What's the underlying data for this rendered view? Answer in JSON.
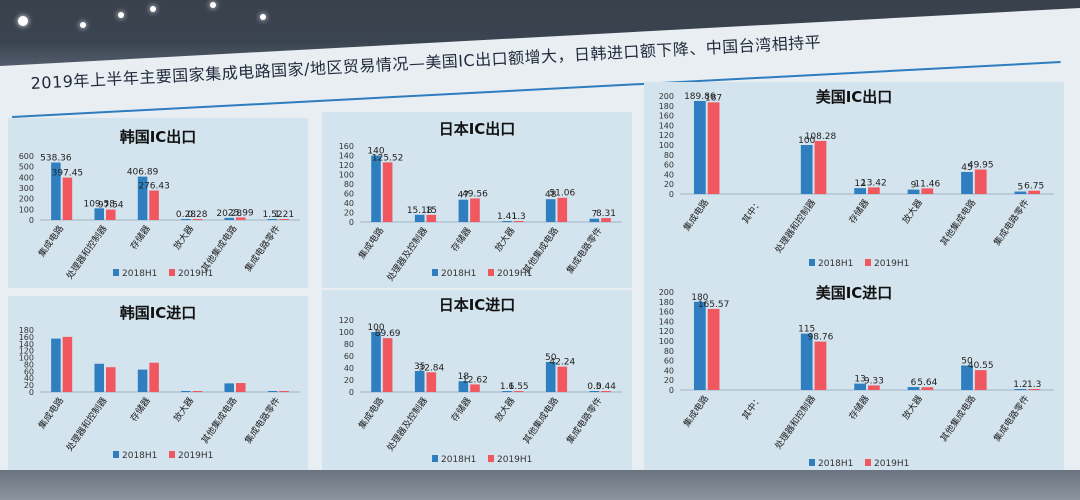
{
  "slide": {
    "title": "2019年上半年主要国家集成电路国家/地区贸易情况—美国IC出口额增大，日韩进口额下降、中国台湾相持平"
  },
  "colors": {
    "s2018": "#2f7fc0",
    "s2019": "#f0575f"
  },
  "chart_data": [
    {
      "id": "kr-export",
      "type": "bar",
      "title": "韩国IC出口",
      "categories": [
        "集成电路",
        "处理器和控制器",
        "存储器",
        "放大器",
        "其他集成电路",
        "集成电路零件"
      ],
      "series": [
        {
          "name": "2018H1",
          "values": [
            538.36,
            109.58,
            406.89,
            0.28,
            20.28,
            1.52
          ]
        },
        {
          "name": "2019H1",
          "values": [
            397.45,
            97.54,
            276.43,
            0.28,
            23.99,
            1.21
          ]
        }
      ],
      "ylim": [
        0,
        600
      ],
      "yticks": [
        0,
        100,
        200,
        300,
        400,
        500,
        600
      ],
      "show_labels": true
    },
    {
      "id": "jp-export",
      "type": "bar",
      "title": "日本IC出口",
      "categories": [
        "集成电路",
        "处理器及控制器",
        "存储器",
        "放大器",
        "其他集成电路",
        "集成电路零件"
      ],
      "series": [
        {
          "name": "2018H1",
          "values": [
            140,
            15.18,
            47,
            1.41,
            48,
            7
          ]
        },
        {
          "name": "2019H1",
          "values": [
            125.52,
            15.0,
            49.56,
            1.3,
            51.06,
            8.31
          ]
        }
      ],
      "ylim": [
        0,
        160
      ],
      "yticks": [
        0,
        20,
        40,
        60,
        80,
        100,
        120,
        140,
        160
      ],
      "show_labels": true
    },
    {
      "id": "us-export",
      "type": "bar",
      "title": "美国IC出口",
      "categories": [
        "集成电路",
        "其中：",
        "处理器和控制器",
        "存储器",
        "放大器",
        "其他集成电路",
        "集成电路零件"
      ],
      "series": [
        {
          "name": "2018H1",
          "values": [
            189.86,
            null,
            100,
            12,
            9,
            45,
            5
          ]
        },
        {
          "name": "2019H1",
          "values": [
            187,
            null,
            108.28,
            13.42,
            11.46,
            49.95,
            6.75
          ]
        }
      ],
      "ylim": [
        0,
        200
      ],
      "yticks": [
        0,
        20,
        40,
        60,
        80,
        100,
        120,
        140,
        160,
        180,
        200
      ],
      "show_labels": true
    },
    {
      "id": "kr-import",
      "type": "bar",
      "title": "韩国IC进口",
      "categories": [
        "集成电路",
        "处理器和控制器",
        "存储器",
        "放大器",
        "其他集成电路",
        "集成电路零件"
      ],
      "series": [
        {
          "name": "2018H1",
          "values": [
            155,
            82,
            65,
            0.3,
            25,
            1
          ]
        },
        {
          "name": "2019H1",
          "values": [
            160,
            72,
            85,
            0.3,
            26,
            1
          ]
        }
      ],
      "ylim": [
        0,
        180
      ],
      "yticks": [
        0,
        20,
        40,
        60,
        80,
        100,
        120,
        140,
        160,
        180
      ],
      "show_labels": false
    },
    {
      "id": "jp-import",
      "type": "bar",
      "title": "日本IC进口",
      "categories": [
        "集成电路",
        "处理器及控制器",
        "存储器",
        "放大器",
        "其他集成电路",
        "集成电路零件"
      ],
      "series": [
        {
          "name": "2018H1",
          "values": [
            100,
            35,
            18,
            1.6,
            50,
            0.5
          ]
        },
        {
          "name": "2019H1",
          "values": [
            89.69,
            32.84,
            12.62,
            1.55,
            42.24,
            0.44
          ]
        }
      ],
      "ylim": [
        0,
        120
      ],
      "yticks": [
        0,
        20,
        40,
        60,
        80,
        100,
        120
      ],
      "show_labels": true
    },
    {
      "id": "us-import",
      "type": "bar",
      "title": "美国IC进口",
      "categories": [
        "集成电路",
        "其中：",
        "处理器和控制器",
        "存储器",
        "放大器",
        "其他集成电路",
        "集成电路零件"
      ],
      "series": [
        {
          "name": "2018H1",
          "values": [
            180,
            null,
            115,
            13,
            6,
            50,
            1.2
          ]
        },
        {
          "name": "2019H1",
          "values": [
            165.57,
            null,
            98.76,
            9.33,
            5.64,
            40.55,
            1.3
          ]
        }
      ],
      "ylim": [
        0,
        200
      ],
      "yticks": [
        0,
        20,
        40,
        60,
        80,
        100,
        120,
        140,
        160,
        180,
        200
      ],
      "show_labels": true
    }
  ]
}
